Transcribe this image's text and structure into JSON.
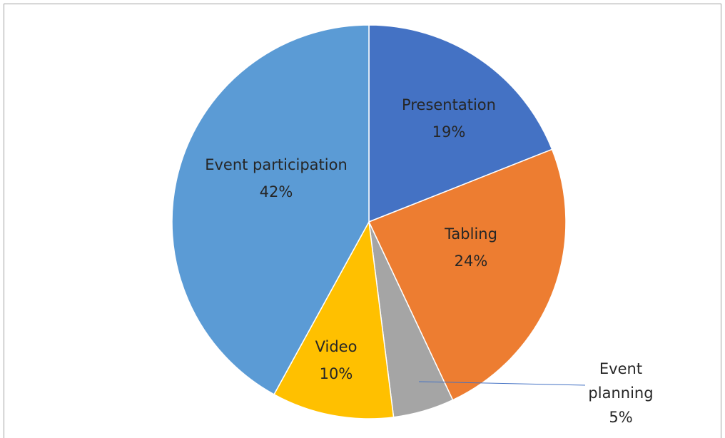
{
  "chart_data": {
    "type": "pie",
    "categories": [
      "Presentation",
      "Tabling",
      "Event planning",
      "Video",
      "Event participation"
    ],
    "values": [
      19,
      24,
      5,
      10,
      42
    ],
    "value_labels": [
      "19%",
      "24%",
      "5%",
      "10%",
      "42%"
    ],
    "colors": [
      "#4472c4",
      "#ed7d31",
      "#a5a5a5",
      "#ffc000",
      "#5b9bd5"
    ]
  }
}
